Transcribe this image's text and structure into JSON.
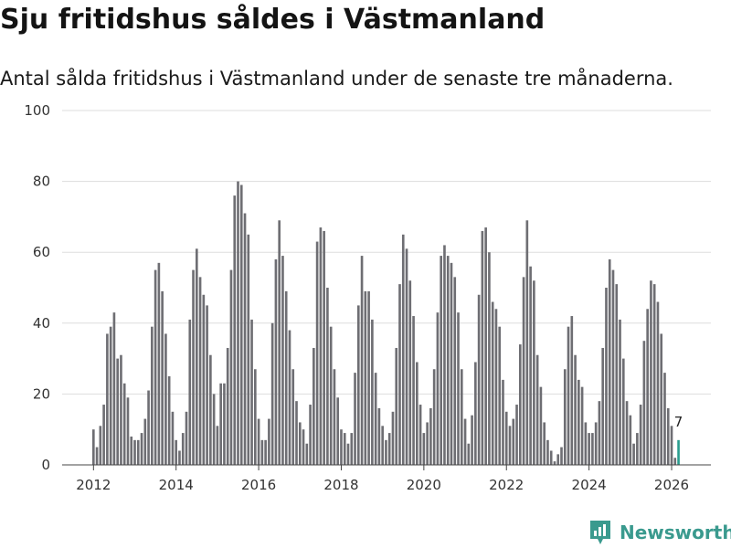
{
  "page": {
    "title": "Sju fritidshus såldes i Västmanland",
    "subtitle": "Antal sålda fritidshus i Västmanland under de senaste tre månaderna."
  },
  "brand": {
    "name": "Newsworthy",
    "icon": "newsworthy-logo-icon",
    "color": "#3a9a8e"
  },
  "colors": {
    "bar": "#6e6e73",
    "highlight": "#2a9d8f",
    "grid": "#dddddd"
  },
  "chart_data": {
    "type": "bar",
    "title": "Sju fritidshus såldes i Västmanland",
    "subtitle": "Antal sålda fritidshus i Västmanland under de senaste tre månaderna.",
    "xlabel": "",
    "ylabel": "",
    "ylim": [
      0,
      100
    ],
    "yticks": [
      0,
      20,
      40,
      60,
      80,
      100
    ],
    "xticks": [
      {
        "label": "2012",
        "at": "2012-01"
      },
      {
        "label": "2014",
        "at": "2014-01"
      },
      {
        "label": "2016",
        "at": "2016-01"
      },
      {
        "label": "2018",
        "at": "2018-01"
      },
      {
        "label": "2020",
        "at": "2020-01"
      },
      {
        "label": "2022",
        "at": "2022-01"
      },
      {
        "label": "2024",
        "at": "2024-01"
      },
      {
        "label": "2026",
        "at": "2026-01"
      }
    ],
    "start": "2012-01",
    "grid": true,
    "highlight_last": true,
    "annotation": {
      "text": "7",
      "target": "last"
    },
    "values": [
      10,
      5,
      11,
      17,
      37,
      39,
      43,
      30,
      31,
      23,
      19,
      8,
      7,
      7,
      9,
      13,
      21,
      39,
      55,
      57,
      49,
      37,
      25,
      15,
      7,
      4,
      9,
      15,
      41,
      55,
      61,
      53,
      48,
      45,
      31,
      20,
      11,
      23,
      23,
      33,
      55,
      76,
      80,
      79,
      71,
      65,
      41,
      27,
      13,
      7,
      7,
      13,
      40,
      58,
      69,
      59,
      49,
      38,
      27,
      18,
      12,
      10,
      6,
      17,
      33,
      63,
      67,
      66,
      50,
      39,
      27,
      19,
      10,
      9,
      6,
      9,
      26,
      45,
      59,
      49,
      49,
      41,
      26,
      16,
      11,
      7,
      9,
      15,
      33,
      51,
      65,
      61,
      52,
      42,
      29,
      17,
      9,
      12,
      16,
      27,
      43,
      59,
      62,
      59,
      57,
      53,
      43,
      27,
      13,
      6,
      14,
      29,
      48,
      66,
      67,
      60,
      46,
      44,
      39,
      24,
      15,
      11,
      13,
      17,
      34,
      53,
      69,
      56,
      52,
      31,
      22,
      12,
      7,
      4,
      1,
      3,
      5,
      27,
      39,
      42,
      31,
      24,
      22,
      12,
      9,
      9,
      12,
      18,
      33,
      50,
      58,
      55,
      51,
      41,
      30,
      18,
      14,
      6,
      9,
      17,
      35,
      44,
      52,
      51,
      46,
      37,
      26,
      16,
      11,
      2,
      7
    ]
  }
}
